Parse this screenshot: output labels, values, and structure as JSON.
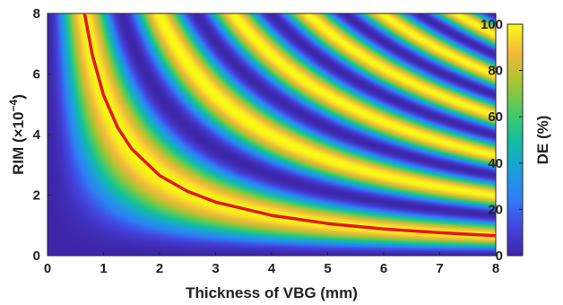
{
  "chart_data": {
    "type": "heatmap",
    "xlabel": "Thickness of VBG (mm)",
    "ylabel_main": "RIM (×10",
    "ylabel_exponent": "−4",
    "ylabel_suffix": ")",
    "colorbar_label": "DE (%)",
    "xlim": [
      0,
      8
    ],
    "ylim": [
      0,
      8
    ],
    "clim": [
      0,
      100
    ],
    "x_ticks": [
      "0",
      "1",
      "2",
      "3",
      "4",
      "5",
      "6",
      "7",
      "8"
    ],
    "y_ticks": [
      "0",
      "2",
      "4",
      "6",
      "8"
    ],
    "colorbar_ticks": [
      "0",
      "20",
      "40",
      "60",
      "80",
      "100"
    ],
    "colormap": "parula",
    "surface": "DE = 100 · sin²(k · x · y), first maximum along x·y ≈ 5.3",
    "curve": {
      "color": "#e8141a",
      "description": "first-order maximum ridge (x·y ≈ 5.3)",
      "x": [
        0.66,
        0.8,
        1,
        1.25,
        1.5,
        2,
        2.5,
        3,
        4,
        5,
        6,
        7,
        8
      ],
      "y": [
        8.0,
        6.63,
        5.3,
        4.24,
        3.53,
        2.65,
        2.12,
        1.77,
        1.33,
        1.06,
        0.88,
        0.76,
        0.66
      ]
    }
  }
}
